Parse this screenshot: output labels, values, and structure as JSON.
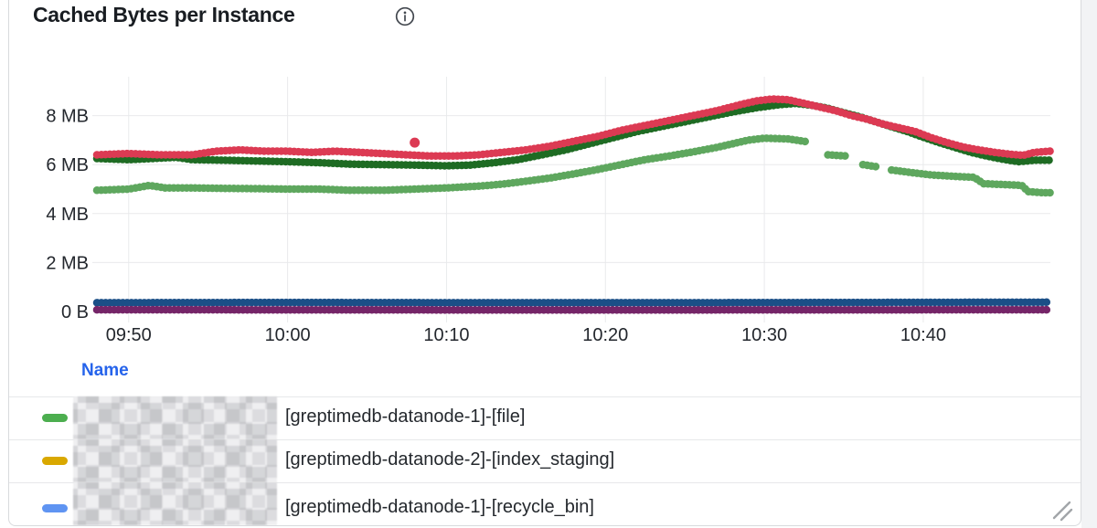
{
  "panel": {
    "title": "Cached Bytes per Instance",
    "info_icon": "info-circle"
  },
  "chart_data": {
    "type": "line",
    "style": "dotted-step",
    "title": "Cached Bytes per Instance",
    "xlabel": "",
    "ylabel": "",
    "grid": true,
    "x_axis": {
      "tick_labels": [
        "09:50",
        "10:00",
        "10:10",
        "10:20",
        "10:30",
        "10:40"
      ],
      "tick_minutes": [
        590,
        600,
        610,
        620,
        630,
        640
      ],
      "domain_minutes": [
        588,
        648
      ]
    },
    "y_axis": {
      "tick_labels": [
        "0 B",
        "2 MB",
        "4 MB",
        "6 MB",
        "8 MB"
      ],
      "tick_values": [
        0,
        2,
        4,
        6,
        8
      ],
      "unit": "MB",
      "ylim": [
        0,
        9.6
      ]
    },
    "series": [
      {
        "name": "navy-flat-series",
        "color": "#1b4f87",
        "segments": [
          [
            [
              588,
              0.36
            ],
            [
              600,
              0.37
            ],
            [
              612,
              0.36
            ],
            [
              624,
              0.36
            ],
            [
              636,
              0.37
            ],
            [
              648,
              0.38
            ]
          ]
        ]
      },
      {
        "name": "purple-flat-series",
        "color": "#752568",
        "segments": [
          [
            [
              588,
              0.07
            ],
            [
              618,
              0.06
            ],
            [
              648,
              0.07
            ]
          ]
        ]
      },
      {
        "name": "light-green-series",
        "color": "#5ea75e",
        "segments": [
          [
            [
              588,
              4.95
            ],
            [
              590,
              5.0
            ],
            [
              591.3,
              5.15
            ],
            [
              592.3,
              5.05
            ],
            [
              594,
              5.05
            ],
            [
              596,
              5.03
            ],
            [
              598,
              5.02
            ],
            [
              600,
              5.0
            ],
            [
              602,
              5.0
            ],
            [
              604,
              4.95
            ],
            [
              606,
              4.95
            ],
            [
              608,
              5.0
            ],
            [
              610,
              5.05
            ],
            [
              612,
              5.12
            ],
            [
              613.5,
              5.2
            ],
            [
              615,
              5.32
            ],
            [
              616.5,
              5.45
            ],
            [
              618,
              5.62
            ],
            [
              619.5,
              5.8
            ],
            [
              621,
              6.0
            ],
            [
              622.5,
              6.2
            ],
            [
              624,
              6.35
            ],
            [
              625.5,
              6.52
            ],
            [
              627,
              6.7
            ],
            [
              628,
              6.85
            ],
            [
              629,
              7.0
            ],
            [
              630,
              7.08
            ],
            [
              631.5,
              7.05
            ],
            [
              632.8,
              6.92
            ]
          ],
          [
            [
              634,
              6.4
            ],
            [
              635.2,
              6.35
            ]
          ],
          [
            [
              636.2,
              6.0
            ],
            [
              637.2,
              5.9
            ]
          ],
          [
            [
              638,
              5.78
            ],
            [
              639.2,
              5.68
            ],
            [
              640.5,
              5.58
            ],
            [
              642,
              5.52
            ],
            [
              643.2,
              5.48
            ],
            [
              643.8,
              5.22
            ],
            [
              645.3,
              5.18
            ],
            [
              646.2,
              5.15
            ],
            [
              646.6,
              4.9
            ],
            [
              647.5,
              4.85
            ],
            [
              648,
              4.85
            ]
          ]
        ]
      },
      {
        "name": "dark-green-series",
        "color": "#1e6b23",
        "segments": [
          [
            [
              588,
              6.25
            ],
            [
              590,
              6.2
            ],
            [
              591.5,
              6.25
            ],
            [
              593,
              6.3
            ],
            [
              594,
              6.2
            ],
            [
              596,
              6.18
            ],
            [
              598,
              6.15
            ],
            [
              600,
              6.12
            ],
            [
              602,
              6.08
            ],
            [
              604,
              6.02
            ],
            [
              606,
              6.0
            ],
            [
              608,
              5.98
            ],
            [
              610,
              5.95
            ],
            [
              611.5,
              5.98
            ],
            [
              613,
              6.08
            ],
            [
              614.5,
              6.2
            ],
            [
              616,
              6.4
            ],
            [
              617.5,
              6.6
            ],
            [
              619,
              6.85
            ],
            [
              620.5,
              7.1
            ],
            [
              622,
              7.35
            ],
            [
              623.5,
              7.55
            ],
            [
              625,
              7.75
            ],
            [
              626.5,
              7.95
            ],
            [
              628,
              8.15
            ],
            [
              629.5,
              8.32
            ],
            [
              631,
              8.45
            ],
            [
              632,
              8.5
            ],
            [
              633,
              8.42
            ],
            [
              634,
              8.3
            ],
            [
              635,
              8.12
            ],
            [
              636,
              7.95
            ],
            [
              637,
              7.75
            ],
            [
              638,
              7.55
            ],
            [
              639,
              7.35
            ],
            [
              640,
              7.12
            ],
            [
              641,
              6.9
            ],
            [
              642,
              6.7
            ],
            [
              643,
              6.5
            ],
            [
              644,
              6.35
            ],
            [
              645,
              6.22
            ],
            [
              646,
              6.12
            ],
            [
              647,
              6.18
            ],
            [
              648,
              6.18
            ]
          ]
        ]
      },
      {
        "name": "red-series",
        "color": "#dc3a53",
        "segments": [
          [
            [
              588,
              6.4
            ],
            [
              590,
              6.45
            ],
            [
              592,
              6.4
            ],
            [
              594,
              6.4
            ],
            [
              595.5,
              6.55
            ],
            [
              597,
              6.6
            ],
            [
              598.5,
              6.55
            ],
            [
              600,
              6.55
            ],
            [
              601.5,
              6.5
            ],
            [
              603,
              6.55
            ],
            [
              604.5,
              6.5
            ],
            [
              606,
              6.45
            ],
            [
              607.5,
              6.4
            ],
            [
              609,
              6.35
            ],
            [
              610.5,
              6.35
            ],
            [
              612,
              6.4
            ],
            [
              613.5,
              6.5
            ],
            [
              615,
              6.6
            ],
            [
              616.5,
              6.75
            ],
            [
              618,
              6.95
            ],
            [
              619.5,
              7.15
            ],
            [
              621,
              7.4
            ],
            [
              622.5,
              7.6
            ],
            [
              624,
              7.8
            ],
            [
              625.5,
              8.0
            ],
            [
              627,
              8.2
            ],
            [
              628.5,
              8.45
            ],
            [
              629.5,
              8.6
            ],
            [
              630.5,
              8.68
            ],
            [
              631.5,
              8.65
            ],
            [
              632.5,
              8.5
            ],
            [
              633.5,
              8.35
            ],
            [
              634.5,
              8.2
            ],
            [
              635.5,
              8.0
            ],
            [
              636.5,
              7.85
            ],
            [
              637.5,
              7.65
            ],
            [
              638.5,
              7.5
            ],
            [
              639.5,
              7.35
            ],
            [
              640.5,
              7.1
            ],
            [
              641.5,
              6.9
            ],
            [
              642.5,
              6.72
            ],
            [
              643.5,
              6.6
            ],
            [
              644.5,
              6.5
            ],
            [
              645.5,
              6.42
            ],
            [
              646.3,
              6.38
            ],
            [
              647,
              6.5
            ],
            [
              648,
              6.55
            ]
          ]
        ]
      }
    ],
    "outliers": [
      {
        "series": "red-series",
        "t": 608,
        "v": 6.9,
        "color": "#dc3a53"
      }
    ],
    "legend_position": "bottom-table"
  },
  "legend": {
    "header": "Name",
    "header_color": "#2563eb",
    "rows": [
      {
        "chip_color": "#4cae4f",
        "redacted_prefix": true,
        "label": "[greptimedb-datanode-1]-[file]"
      },
      {
        "chip_color": "#d9a800",
        "redacted_prefix": true,
        "label": "[greptimedb-datanode-2]-[index_staging]"
      },
      {
        "chip_color": "#5f94f2",
        "redacted_prefix": true,
        "label": "[greptimedb-datanode-1]-[recycle_bin]"
      }
    ]
  }
}
